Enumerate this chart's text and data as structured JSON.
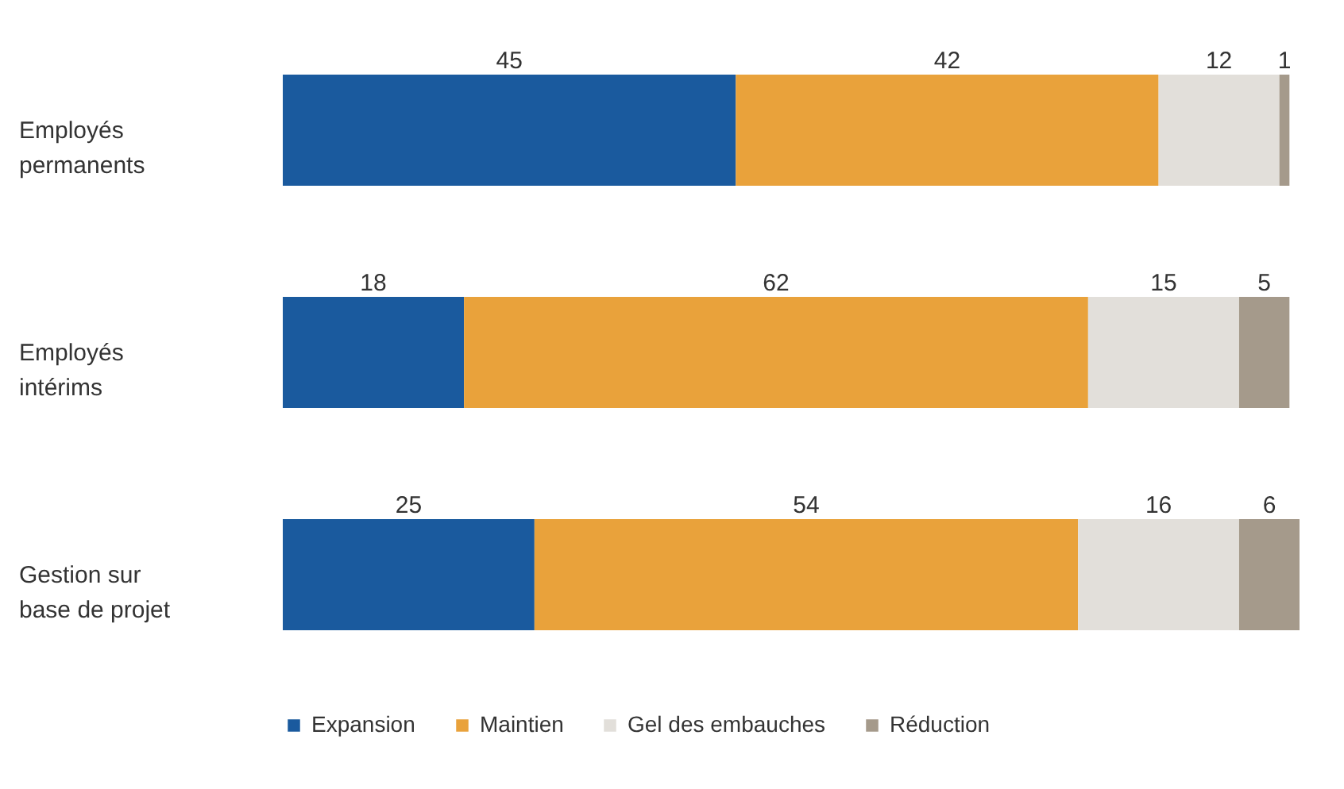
{
  "chart_data": {
    "type": "bar",
    "orientation": "horizontal",
    "stacked": true,
    "data_labels": true,
    "legend": "bottom",
    "categories": [
      "Employés permanents",
      "Employés intérims",
      "Gestion sur base de projet"
    ],
    "series": [
      {
        "name": "Expansion",
        "color": "#1a5a9e",
        "values": [
          45,
          18,
          25
        ]
      },
      {
        "name": "Maintien",
        "color": "#e9a23b",
        "values": [
          42,
          62,
          54
        ]
      },
      {
        "name": "Gel des embauches",
        "color": "#e2dfda",
        "values": [
          12,
          15,
          16
        ]
      },
      {
        "name": "Réduction",
        "color": "#a59a8b",
        "values": [
          1,
          5,
          6
        ]
      }
    ]
  }
}
